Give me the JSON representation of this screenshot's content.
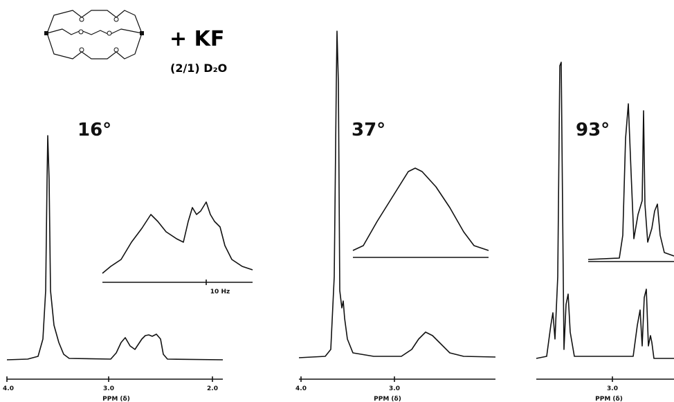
{
  "figure": {
    "reagent": "+ KF",
    "solvent": "(2/1) D₂O",
    "panels": [
      {
        "temperature": "16°",
        "ticks": [
          "4.0",
          "3.0",
          "2.0"
        ],
        "axis_label": "PPM (δ)",
        "inset_scale": "10 Hz"
      },
      {
        "temperature": "37°",
        "ticks": [
          "4.0",
          "3.0"
        ],
        "axis_label": "PPM (δ)"
      },
      {
        "temperature": "93°",
        "ticks": [
          "3.0"
        ],
        "axis_label": "PPM (δ)"
      }
    ]
  }
}
